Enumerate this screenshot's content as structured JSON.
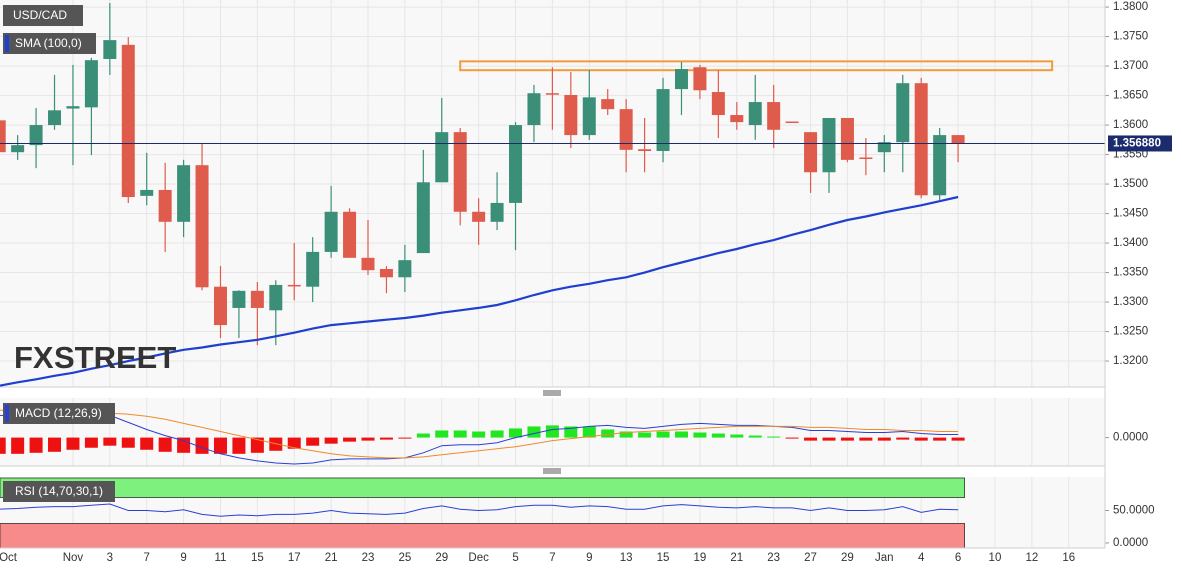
{
  "chart_data": [
    {
      "type": "candlestick",
      "title": "USD/CAD",
      "indicator_label": "SMA (100,0)",
      "watermark": [
        "FX",
        "STREET"
      ],
      "categories": [
        "Oct",
        null,
        null,
        null,
        "Nov",
        null,
        "3",
        null,
        "7",
        null,
        "9",
        null,
        "11",
        null,
        "15",
        null,
        "17",
        null,
        "21",
        null,
        "23",
        null,
        "25",
        null,
        "29",
        null,
        "Dec",
        null,
        "5",
        null,
        "7",
        null,
        "9",
        null,
        "13",
        null,
        "15",
        null,
        "19",
        null,
        "21",
        null,
        "23",
        null,
        "27",
        null,
        "29",
        null,
        "Jan",
        null,
        "4",
        null,
        "6",
        null,
        "10",
        null,
        "12",
        null,
        "16",
        null,
        null
      ],
      "open": [
        1.3608,
        1.3554,
        1.3566,
        1.36,
        1.3628,
        1.363,
        1.3712,
        1.3736,
        1.348,
        1.349,
        1.3436,
        1.3532,
        1.3326,
        1.329,
        1.3319,
        1.3286,
        1.3329,
        1.3326,
        1.3385,
        1.3453,
        1.3375,
        1.3356,
        1.3342,
        1.3383,
        1.3503,
        1.3588,
        1.3453,
        1.3436,
        1.3468,
        1.36,
        1.3654,
        1.3651,
        1.3583,
        1.3644,
        1.3627,
        1.3559,
        1.3556,
        1.3661,
        1.3698,
        1.3656,
        1.3617,
        1.36,
        1.3639,
        1.3606,
        1.3588,
        1.352,
        1.3612,
        1.3545,
        1.3554,
        1.3571,
        1.3671,
        1.3481,
        1.3583,
        null,
        null,
        null,
        null,
        null,
        null,
        null,
        null
      ],
      "high": [
        1.3651,
        1.3583,
        1.3629,
        1.3685,
        1.3702,
        1.3714,
        1.3807,
        1.3749,
        1.3553,
        1.3536,
        1.3541,
        1.3569,
        1.3361,
        1.332,
        1.3334,
        1.3337,
        1.34,
        1.341,
        1.3497,
        1.3459,
        1.3439,
        1.3361,
        1.3397,
        1.3558,
        1.3646,
        1.3595,
        1.3476,
        1.352,
        1.3605,
        1.3668,
        1.3698,
        1.369,
        1.3693,
        1.3661,
        1.3644,
        1.3612,
        1.368,
        1.3707,
        1.3702,
        1.3693,
        1.3639,
        1.3685,
        1.3668,
        1.3606,
        1.3588,
        1.3612,
        1.3612,
        1.3578,
        1.3583,
        1.3685,
        1.368,
        1.3595,
        1.3583,
        null,
        null,
        null,
        null,
        null,
        null,
        null,
        null
      ],
      "low": [
        1.3507,
        1.3541,
        1.3527,
        1.3592,
        1.3532,
        1.3549,
        1.3685,
        1.3468,
        1.3464,
        1.3385,
        1.341,
        1.332,
        1.3239,
        1.3239,
        1.3227,
        1.3227,
        1.3303,
        1.33,
        1.3375,
        1.3375,
        1.3346,
        1.3315,
        1.3317,
        1.3383,
        1.3503,
        1.343,
        1.3397,
        1.3422,
        1.3388,
        1.3571,
        1.3592,
        1.3561,
        1.3575,
        1.3617,
        1.352,
        1.352,
        1.3537,
        1.3617,
        1.3644,
        1.3578,
        1.3592,
        1.3575,
        1.3561,
        1.3604,
        1.3485,
        1.3485,
        1.3537,
        1.3515,
        1.352,
        1.352,
        1.3476,
        1.3473,
        1.3537,
        null,
        null,
        null,
        null,
        null,
        null,
        null,
        null
      ],
      "close": [
        1.3554,
        1.3566,
        1.36,
        1.3625,
        1.3632,
        1.371,
        1.3744,
        1.3478,
        1.349,
        1.3436,
        1.3532,
        1.3325,
        1.3261,
        1.3319,
        1.329,
        1.3329,
        1.3327,
        1.3385,
        1.3453,
        1.3375,
        1.3354,
        1.3342,
        1.3371,
        1.3503,
        1.3588,
        1.3453,
        1.3436,
        1.3468,
        1.36,
        1.3654,
        1.3652,
        1.3583,
        1.3647,
        1.3627,
        1.3558,
        1.3556,
        1.3661,
        1.3695,
        1.3659,
        1.3617,
        1.3605,
        1.3639,
        1.3592,
        1.3604,
        1.352,
        1.3612,
        1.3541,
        1.3543,
        1.3571,
        1.3671,
        1.3481,
        1.3583,
        1.3569,
        null,
        null,
        null,
        null,
        null,
        null,
        null,
        null
      ],
      "up_color": "#3b8f79",
      "down_color": "#df5b4b",
      "sma": {
        "color": "#1f3fcf",
        "values": [
          1.3158,
          1.3164,
          1.3169,
          1.3175,
          1.318,
          1.3187,
          1.3193,
          1.32,
          1.3206,
          1.3213,
          1.3219,
          1.3223,
          1.3228,
          1.3232,
          1.3236,
          1.3242,
          1.3248,
          1.3255,
          1.3261,
          1.3264,
          1.3267,
          1.327,
          1.3273,
          1.3277,
          1.3282,
          1.3286,
          1.329,
          1.3295,
          1.3303,
          1.3312,
          1.332,
          1.3326,
          1.3331,
          1.3337,
          1.3342,
          1.335,
          1.3359,
          1.3367,
          1.3375,
          1.3383,
          1.339,
          1.3398,
          1.3405,
          1.3414,
          1.3422,
          1.3431,
          1.3439,
          1.3445,
          1.3452,
          1.3458,
          1.3464,
          1.3471,
          1.3478,
          null,
          null,
          null,
          null,
          null,
          null,
          null,
          null
        ]
      },
      "last_price": {
        "value": 1.35688,
        "label": "1.356880"
      },
      "last_price_color": "#1b2b6e",
      "zone": {
        "ylim": [
          1.3693,
          1.3708
        ],
        "color": "#f39a3c"
      },
      "ylim": [
        1.3156,
        1.3812
      ],
      "yticks": [
        {
          "value": 1.38,
          "label": "1.3800"
        },
        {
          "value": 1.375,
          "label": "1.3750"
        },
        {
          "value": 1.37,
          "label": "1.3700"
        },
        {
          "value": 1.365,
          "label": "1.3650"
        },
        {
          "value": 1.36,
          "label": "1.3600"
        },
        {
          "value": 1.355,
          "label": "1.3550"
        },
        {
          "value": 1.35,
          "label": "1.3500"
        },
        {
          "value": 1.345,
          "label": "1.3450"
        },
        {
          "value": 1.34,
          "label": "1.3400"
        },
        {
          "value": 1.335,
          "label": "1.3350"
        },
        {
          "value": 1.33,
          "label": "1.3300"
        },
        {
          "value": 1.325,
          "label": "1.3250"
        },
        {
          "value": 1.32,
          "label": "1.3200"
        }
      ],
      "grid": true
    },
    {
      "type": "bar",
      "title": "MACD (12,26,9)",
      "values": [
        -0.0016,
        -0.0016,
        -0.0015,
        -0.0014,
        -0.0012,
        -0.001,
        -0.0008,
        -0.001,
        -0.0012,
        -0.0014,
        -0.0015,
        -0.0016,
        -0.0016,
        -0.0016,
        -0.0015,
        -0.0013,
        -0.0011,
        -0.0008,
        -0.0006,
        -0.0004,
        -0.0003,
        -0.0002,
        -0.0001,
        0.0004,
        0.0007,
        0.0007,
        0.0006,
        0.0007,
        0.0009,
        0.0011,
        0.0012,
        0.0011,
        0.0011,
        0.0008,
        0.0006,
        0.0005,
        0.0006,
        0.0006,
        0.0005,
        0.0004,
        0.0003,
        0.0002,
        0.0001,
        -0.0001,
        -0.0003,
        -0.0003,
        -0.0003,
        -0.0003,
        -0.0003,
        -0.0002,
        -0.0003,
        -0.0003,
        -0.0003,
        null,
        null,
        null,
        null,
        null,
        null,
        null,
        null
      ],
      "positive_color": "#22e622",
      "negative_color": "#ee1111",
      "lines": [
        {
          "color": "#2a3fd6",
          "values": [
            0.0022,
            0.0021,
            0.002,
            0.0019,
            0.0019,
            0.002,
            0.0022,
            0.0015,
            0.0008,
            0.0002,
            -0.0003,
            -0.001,
            -0.0016,
            -0.002,
            -0.0023,
            -0.0025,
            -0.0026,
            -0.0025,
            -0.0022,
            -0.0021,
            -0.0021,
            -0.0021,
            -0.002,
            -0.0015,
            -0.0008,
            -0.0007,
            -0.0007,
            -0.0005,
            0.0,
            0.0004,
            0.0008,
            0.0009,
            0.0011,
            0.0012,
            0.001,
            0.0009,
            0.0011,
            0.0013,
            0.0014,
            0.0013,
            0.0012,
            0.0012,
            0.0011,
            0.001,
            0.0007,
            0.0007,
            0.0006,
            0.0005,
            0.0005,
            0.0006,
            0.0004,
            0.0003,
            0.0003,
            null,
            null,
            null,
            null,
            null,
            null,
            null,
            null
          ]
        },
        {
          "color": "#f08a2c",
          "values": [
            0.0027,
            0.0027,
            0.0026,
            0.0025,
            0.0024,
            0.0024,
            0.0024,
            0.0023,
            0.0021,
            0.0018,
            0.0014,
            0.001,
            0.0006,
            0.0002,
            -0.0002,
            -0.0006,
            -0.001,
            -0.0013,
            -0.0016,
            -0.0018,
            -0.0019,
            -0.002,
            -0.002,
            -0.0019,
            -0.0017,
            -0.0015,
            -0.0013,
            -0.0011,
            -0.0009,
            -0.0006,
            -0.0003,
            -0.0001,
            0.0001,
            0.0003,
            0.0005,
            0.0006,
            0.0007,
            0.0008,
            0.0009,
            0.001,
            0.0011,
            0.0011,
            0.0011,
            0.0011,
            0.001,
            0.001,
            0.0009,
            0.0008,
            0.0008,
            0.0007,
            0.0007,
            0.0006,
            0.0006,
            null,
            null,
            null,
            null,
            null,
            null,
            null,
            null
          ]
        }
      ],
      "ylim": [
        -0.0028,
        0.0039
      ],
      "yticks": [
        {
          "value": 0,
          "label": "0.0000"
        }
      ]
    },
    {
      "type": "line",
      "title": "RSI (14,70,30,1)",
      "series": [
        {
          "color": "#2a3fd6",
          "values": [
            52,
            53,
            55,
            56,
            56,
            58,
            60,
            50,
            50,
            48,
            51,
            44,
            41,
            43,
            42,
            44,
            44,
            46,
            50,
            46,
            45,
            44,
            46,
            53,
            57,
            52,
            50,
            51,
            56,
            58,
            58,
            55,
            57,
            56,
            52,
            52,
            57,
            59,
            57,
            55,
            54,
            56,
            54,
            54,
            50,
            54,
            50,
            50,
            51,
            56,
            47,
            52,
            51,
            null,
            null,
            null,
            null,
            null,
            null,
            null,
            null
          ]
        }
      ],
      "overbought": 70,
      "oversold": 30,
      "overbought_color": "#7ef07e",
      "oversold_color": "#f78a8a",
      "ylim": [
        -7.8,
        101.6
      ],
      "yticks": [
        {
          "value": 50,
          "label": "50.0000"
        },
        {
          "value": 0,
          "label": "0.0000"
        }
      ]
    }
  ]
}
